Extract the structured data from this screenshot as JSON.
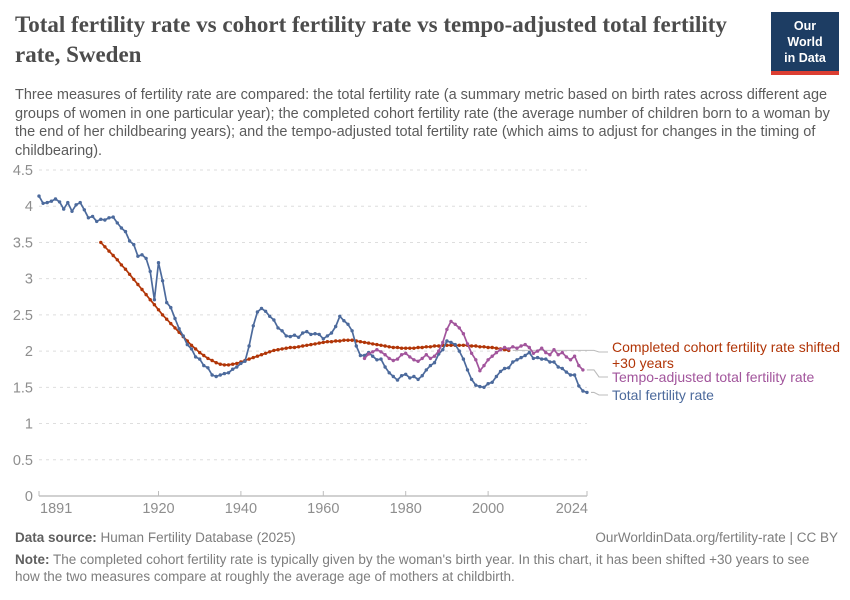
{
  "header": {
    "title": "Total fertility rate vs cohort fertility rate vs tempo-adjusted total fertility rate, Sweden",
    "subtitle": "Three measures of fertility rate are compared: the total fertility rate (a summary metric based on birth rates across different age groups of women in one particular year); the completed cohort fertility rate (the average number of children born to a woman by the end of her childbearing years); and the tempo-adjusted total fertility rate (which aims to adjust for changes in the timing of childbearing).",
    "logo": {
      "line1": "Our World",
      "line2": "in Data",
      "bg_color": "#1d3d63",
      "accent_color": "#dc3e32"
    }
  },
  "chart_data": {
    "type": "line",
    "title": "Total fertility rate vs cohort fertility rate vs tempo-adjusted total fertility rate, Sweden",
    "xlabel": "",
    "ylabel": "",
    "xlim": [
      1891,
      2024
    ],
    "ylim": [
      0,
      4.5
    ],
    "x_ticks": [
      1891,
      1920,
      1940,
      1960,
      1980,
      2000,
      2024
    ],
    "y_ticks": [
      0,
      0.5,
      1,
      1.5,
      2,
      2.5,
      3,
      3.5,
      4,
      4.5
    ],
    "grid": "horizontal-dashed",
    "legend_position": "right-of-line-ends",
    "series": [
      {
        "name": "Completed cohort fertility rate shifted +30 years",
        "color": "#B13507",
        "start_year": 1906,
        "values": [
          3.5,
          3.44,
          3.38,
          3.32,
          3.26,
          3.19,
          3.13,
          3.06,
          2.99,
          2.92,
          2.85,
          2.78,
          2.71,
          2.64,
          2.57,
          2.5,
          2.44,
          2.38,
          2.32,
          2.26,
          2.2,
          2.14,
          2.08,
          2.03,
          1.98,
          1.94,
          1.9,
          1.87,
          1.84,
          1.82,
          1.81,
          1.81,
          1.82,
          1.83,
          1.85,
          1.87,
          1.89,
          1.91,
          1.93,
          1.95,
          1.97,
          1.99,
          2.01,
          2.02,
          2.03,
          2.04,
          2.05,
          2.05,
          2.06,
          2.07,
          2.08,
          2.09,
          2.1,
          2.11,
          2.12,
          2.13,
          2.13,
          2.14,
          2.14,
          2.15,
          2.15,
          2.15,
          2.14,
          2.13,
          2.12,
          2.11,
          2.1,
          2.09,
          2.08,
          2.07,
          2.06,
          2.05,
          2.05,
          2.04,
          2.04,
          2.04,
          2.04,
          2.05,
          2.05,
          2.06,
          2.06,
          2.07,
          2.07,
          2.08,
          2.08,
          2.08,
          2.08,
          2.08,
          2.08,
          2.08,
          2.07,
          2.07,
          2.06,
          2.06,
          2.05,
          2.05,
          2.04,
          2.03,
          2.02,
          2.01
        ]
      },
      {
        "name": "Total fertility rate",
        "color": "#4C6A9C",
        "start_year": 1891,
        "values": [
          4.14,
          4.04,
          4.05,
          4.07,
          4.1,
          4.06,
          3.96,
          4.05,
          3.93,
          4.02,
          4.05,
          3.95,
          3.84,
          3.86,
          3.79,
          3.82,
          3.81,
          3.84,
          3.85,
          3.77,
          3.7,
          3.65,
          3.52,
          3.47,
          3.31,
          3.33,
          3.28,
          3.1,
          2.71,
          3.22,
          2.97,
          2.67,
          2.6,
          2.45,
          2.31,
          2.21,
          2.09,
          2.03,
          1.92,
          1.89,
          1.8,
          1.77,
          1.67,
          1.65,
          1.67,
          1.69,
          1.7,
          1.75,
          1.78,
          1.83,
          1.86,
          2.07,
          2.35,
          2.54,
          2.59,
          2.55,
          2.48,
          2.43,
          2.32,
          2.28,
          2.21,
          2.2,
          2.22,
          2.19,
          2.25,
          2.27,
          2.23,
          2.24,
          2.23,
          2.17,
          2.21,
          2.25,
          2.34,
          2.48,
          2.42,
          2.37,
          2.28,
          2.07,
          1.94,
          1.94,
          1.98,
          1.93,
          1.88,
          1.89,
          1.78,
          1.7,
          1.65,
          1.6,
          1.66,
          1.68,
          1.63,
          1.65,
          1.61,
          1.66,
          1.74,
          1.8,
          1.84,
          1.96,
          2.02,
          2.14,
          2.12,
          2.09,
          2.0,
          1.89,
          1.74,
          1.61,
          1.53,
          1.51,
          1.5,
          1.55,
          1.57,
          1.65,
          1.72,
          1.76,
          1.77,
          1.85,
          1.88,
          1.91,
          1.94,
          1.98,
          1.9,
          1.91,
          1.89,
          1.89,
          1.85,
          1.85,
          1.78,
          1.76,
          1.71,
          1.67,
          1.67,
          1.52,
          1.45,
          1.43
        ]
      },
      {
        "name": "Tempo-adjusted total fertility rate",
        "color": "#A2559C",
        "start_year": 1970,
        "values": [
          1.9,
          1.96,
          1.99,
          2.02,
          1.99,
          1.95,
          1.9,
          1.87,
          1.89,
          1.95,
          1.97,
          1.92,
          1.88,
          1.86,
          1.9,
          1.95,
          1.9,
          1.93,
          2.0,
          2.12,
          2.3,
          2.41,
          2.37,
          2.32,
          2.24,
          2.1,
          1.97,
          1.88,
          1.73,
          1.8,
          1.88,
          1.93,
          1.98,
          2.02,
          2.05,
          2.03,
          2.06,
          2.04,
          2.07,
          2.09,
          2.05,
          1.97,
          2.0,
          2.04,
          1.98,
          1.95,
          2.02,
          1.95,
          1.98,
          1.92,
          1.88,
          1.93,
          1.8,
          1.74
        ]
      }
    ]
  },
  "legend": {
    "items": [
      {
        "label": "Completed cohort fertility rate shifted +30 years",
        "color": "#B13507"
      },
      {
        "label": "Tempo-adjusted total fertility rate",
        "color": "#A2559C"
      },
      {
        "label": "Total fertility rate",
        "color": "#4C6A9C"
      }
    ]
  },
  "footer": {
    "source_label": "Data source:",
    "source_value": "Human Fertility Database (2025)",
    "link": "OurWorldinData.org/fertility-rate | CC BY",
    "note_label": "Note:",
    "note_text": "The completed cohort fertility rate is typically given by the woman's birth year. In this chart, it has been shifted +30 years to see how the two measures compare at roughly the average age of mothers at childbirth."
  }
}
